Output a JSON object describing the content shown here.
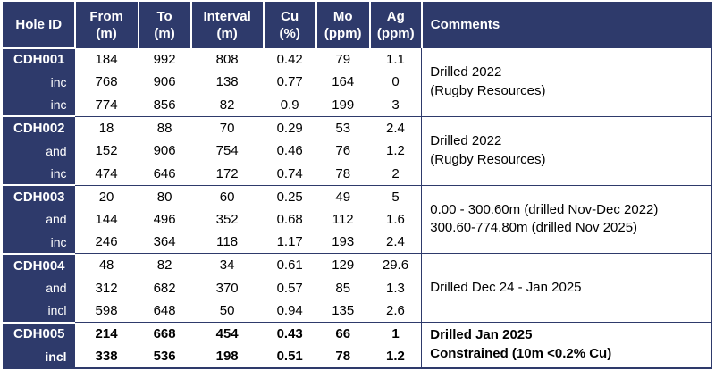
{
  "colors": {
    "header_background": "#2e3a6b",
    "header_text": "#ffffff",
    "body_text": "#000000",
    "grid_line": "#2e3a6b",
    "separator_white": "#ffffff",
    "page_background": "#ffffff"
  },
  "table": {
    "columns": [
      {
        "key": "hole_id",
        "title": "Hole ID",
        "unit": ""
      },
      {
        "key": "from",
        "title": "From",
        "unit": "(m)"
      },
      {
        "key": "to",
        "title": "To",
        "unit": "(m)"
      },
      {
        "key": "interval",
        "title": "Interval",
        "unit": "(m)"
      },
      {
        "key": "cu",
        "title": "Cu",
        "unit": "(%)"
      },
      {
        "key": "mo",
        "title": "Mo",
        "unit": "(ppm)"
      },
      {
        "key": "ag",
        "title": "Ag",
        "unit": "(ppm)"
      },
      {
        "key": "comments",
        "title": "Comments",
        "unit": ""
      }
    ],
    "blocks": [
      {
        "bold": false,
        "rows": [
          {
            "label": "CDH001",
            "values": [
              "184",
              "992",
              "808",
              "0.42",
              "79",
              "1.1"
            ]
          },
          {
            "label": "inc",
            "values": [
              "768",
              "906",
              "138",
              "0.77",
              "164",
              "0"
            ]
          },
          {
            "label": "inc",
            "values": [
              "774",
              "856",
              "82",
              "0.9",
              "199",
              "3"
            ]
          }
        ],
        "comment_lines": [
          "Drilled 2022",
          "(Rugby Resources)"
        ]
      },
      {
        "bold": false,
        "rows": [
          {
            "label": "CDH002",
            "values": [
              "18",
              "88",
              "70",
              "0.29",
              "53",
              "2.4"
            ]
          },
          {
            "label": "and",
            "values": [
              "152",
              "906",
              "754",
              "0.46",
              "76",
              "1.2"
            ]
          },
          {
            "label": "inc",
            "values": [
              "474",
              "646",
              "172",
              "0.74",
              "78",
              "2"
            ]
          }
        ],
        "comment_lines": [
          "Drilled 2022",
          "(Rugby Resources)"
        ]
      },
      {
        "bold": false,
        "rows": [
          {
            "label": "CDH003",
            "values": [
              "20",
              "80",
              "60",
              "0.25",
              "49",
              "5"
            ]
          },
          {
            "label": "and",
            "values": [
              "144",
              "496",
              "352",
              "0.68",
              "112",
              "1.6"
            ]
          },
          {
            "label": "inc",
            "values": [
              "246",
              "364",
              "118",
              "1.17",
              "193",
              "2.4"
            ]
          }
        ],
        "comment_lines": [
          "0.00 - 300.60m (drilled Nov-Dec 2022)",
          "300.60-774.80m (drilled Nov 2025)"
        ]
      },
      {
        "bold": false,
        "rows": [
          {
            "label": "CDH004",
            "values": [
              "48",
              "82",
              "34",
              "0.61",
              "129",
              "29.6"
            ]
          },
          {
            "label": "and",
            "values": [
              "312",
              "682",
              "370",
              "0.57",
              "85",
              "1.3"
            ]
          },
          {
            "label": "incl",
            "values": [
              "598",
              "648",
              "50",
              "0.94",
              "135",
              "2.6"
            ]
          }
        ],
        "comment_lines": [
          "Drilled Dec 24 - Jan 2025"
        ]
      },
      {
        "bold": true,
        "rows": [
          {
            "label": "CDH005",
            "values": [
              "214",
              "668",
              "454",
              "0.43",
              "66",
              "1"
            ]
          },
          {
            "label": "incl",
            "values": [
              "338",
              "536",
              "198",
              "0.51",
              "78",
              "1.2"
            ]
          }
        ],
        "comment_lines": [
          "Drilled Jan 2025",
          "Constrained (10m <0.2% Cu)"
        ]
      }
    ]
  }
}
